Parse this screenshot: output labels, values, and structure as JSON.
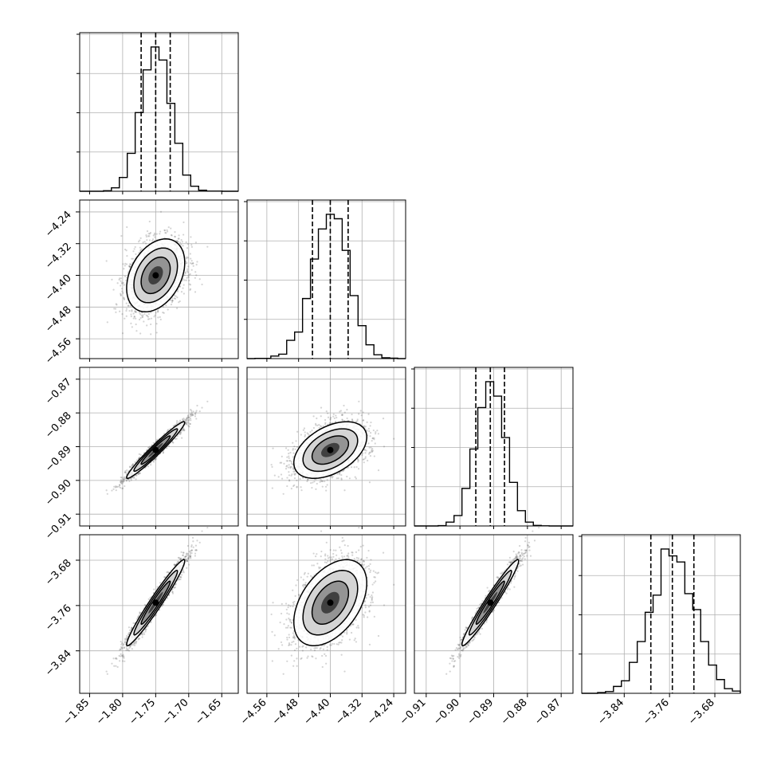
{
  "chart_data": {
    "type": "corner",
    "description_type": "scatter",
    "parameters": [
      {
        "mean": -1.75,
        "sd": 0.022,
        "lim": [
          -1.865,
          -1.625
        ],
        "ticks": [
          -1.85,
          -1.8,
          -1.75,
          -1.7,
          -1.65
        ],
        "tick_labels": [
          "−1.85",
          "−1.80",
          "−1.75",
          "−1.70",
          "−1.65"
        ],
        "quantiles": [
          -1.772,
          -1.75,
          -1.728
        ]
      },
      {
        "mean": -4.4,
        "sd": 0.046,
        "lim": [
          -4.61,
          -4.21
        ],
        "ticks": [
          -4.56,
          -4.48,
          -4.4,
          -4.32,
          -4.24
        ],
        "tick_labels": [
          "−4.56",
          "−4.48",
          "−4.40",
          "−4.32",
          "−4.24"
        ],
        "quantiles": [
          -4.445,
          -4.4,
          -4.355
        ]
      },
      {
        "mean": -0.891,
        "sd": 0.0042,
        "lim": [
          -0.9135,
          -0.8665
        ],
        "ticks": [
          -0.91,
          -0.9,
          -0.89,
          -0.88,
          -0.87
        ],
        "tick_labels": [
          "−0.91",
          "−0.90",
          "−0.89",
          "−0.88",
          "−0.87"
        ],
        "quantiles": [
          -0.8953,
          -0.891,
          -0.8868
        ]
      },
      {
        "mean": -3.755,
        "sd": 0.038,
        "lim": [
          -3.915,
          -3.635
        ],
        "ticks": [
          -3.84,
          -3.76,
          -3.68
        ],
        "tick_labels": [
          "−3.84",
          "−3.76",
          "−3.68"
        ],
        "quantiles": [
          -3.793,
          -3.755,
          -3.717
        ]
      }
    ],
    "correlations": [
      [
        1,
        0.35,
        0.97,
        0.97
      ],
      [
        0.35,
        1,
        0.45,
        0.45
      ],
      [
        0.97,
        0.45,
        1,
        0.97
      ],
      [
        0.97,
        0.45,
        0.97,
        1
      ]
    ],
    "n_samples": 4000,
    "grid": true,
    "histogram_style": "step",
    "quantile_lines": "dashed",
    "contour_levels": 3,
    "colors": {
      "line": "#000000",
      "points": "#555555",
      "grid": "#b0b0b0"
    }
  }
}
